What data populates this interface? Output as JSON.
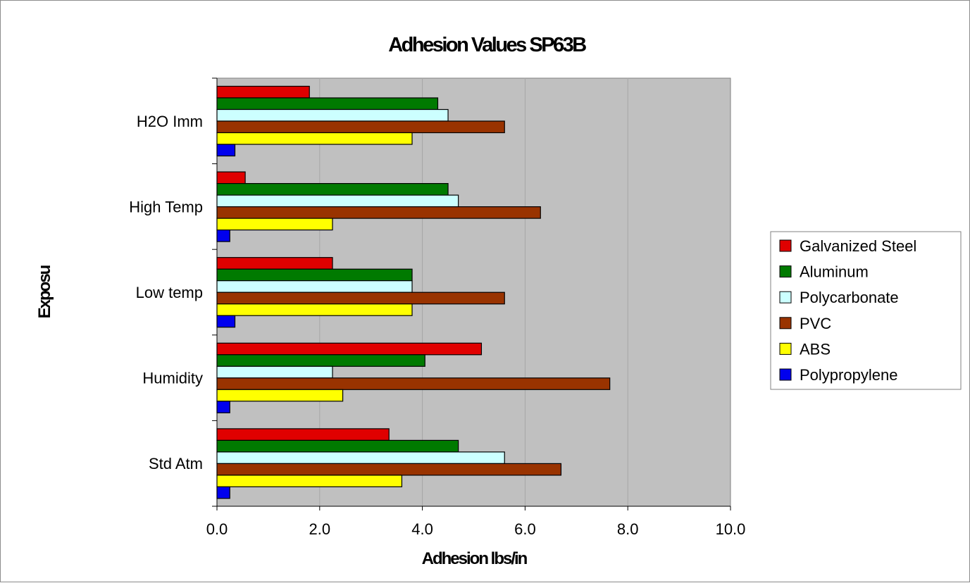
{
  "chart_data": {
    "type": "bar",
    "orientation": "horizontal",
    "title": "Adhesion Values SP63B",
    "xlabel": "Adhesion lbs/in",
    "ylabel": "Exposu",
    "xlim": [
      0,
      10
    ],
    "xticks": [
      "0.0",
      "2.0",
      "4.0",
      "6.0",
      "8.0",
      "10.0"
    ],
    "grid": true,
    "legend_position": "right",
    "categories": [
      "Std Atm",
      "Humidity",
      "Low temp",
      "High Temp",
      "H2O Imm"
    ],
    "series": [
      {
        "name": "Galvanized Steel",
        "color": "#e00000",
        "values": [
          3.35,
          5.15,
          2.25,
          0.55,
          1.8
        ]
      },
      {
        "name": "Aluminum",
        "color": "#007a00",
        "values": [
          4.7,
          4.05,
          3.8,
          4.5,
          4.3
        ]
      },
      {
        "name": "Polycarbonate",
        "color": "#ccffff",
        "values": [
          5.6,
          2.25,
          3.8,
          4.7,
          4.5
        ]
      },
      {
        "name": "PVC",
        "color": "#993300",
        "values": [
          6.7,
          7.65,
          5.6,
          6.3,
          5.6
        ]
      },
      {
        "name": "ABS",
        "color": "#ffff00",
        "values": [
          3.6,
          2.45,
          3.8,
          2.25,
          3.8
        ]
      },
      {
        "name": "Polypropylene",
        "color": "#0000ee",
        "values": [
          0.25,
          0.25,
          0.35,
          0.25,
          0.35
        ]
      }
    ]
  }
}
